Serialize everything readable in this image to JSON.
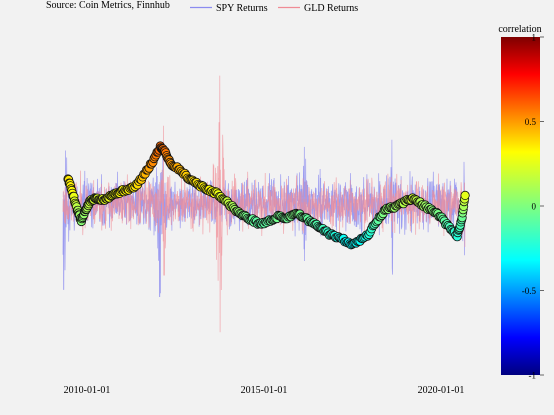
{
  "source_note": "Source: Coin Metrics, Finnhub",
  "chart_data": {
    "type": "line",
    "x_axis": {
      "type": "date",
      "range": [
        "2008-11-15",
        "2020-04-10"
      ],
      "tick_labels": [
        "2010-01-01",
        "2015-01-01",
        "2020-01-01"
      ]
    },
    "y_axis": {
      "range": [
        -0.12,
        0.115
      ],
      "visible": false
    },
    "legend": {
      "placement": "top-center",
      "entries": [
        {
          "name": "SPY Returns",
          "color": "#8c8cf0"
        },
        {
          "name": "GLD Returns",
          "color": "#f08c96"
        }
      ]
    },
    "colorbar": {
      "title": "correlation",
      "range": [
        -1,
        1
      ],
      "tick_labels": [
        "1",
        "0.5",
        "0",
        "-0.5",
        "-1"
      ],
      "tick_values": [
        1,
        0.5,
        0,
        -0.5,
        -1
      ],
      "colorscale": "jet"
    },
    "series": [
      {
        "name": "SPY Returns",
        "color": "#8c8cf0",
        "seed": 11,
        "volatility_spikes": [
          {
            "date": "2008-12-01",
            "amplitude": 0.06
          },
          {
            "date": "2011-08-08",
            "amplitude": 0.065
          },
          {
            "date": "2015-08-24",
            "amplitude": 0.04
          },
          {
            "date": "2018-02-05",
            "amplitude": 0.045
          },
          {
            "date": "2020-03-16",
            "amplitude": 0.11
          }
        ]
      },
      {
        "name": "GLD Returns",
        "color": "#f08c96",
        "seed": 23,
        "volatility_spikes": [
          {
            "date": "2013-04-15",
            "amplitude": 0.09
          },
          {
            "date": "2011-09-23",
            "amplitude": 0.05
          },
          {
            "date": "2020-03-13",
            "amplitude": 0.045
          }
        ]
      },
      {
        "name": "rolling correlation",
        "type": "scatter",
        "marker_outline": "#111111",
        "points": [
          {
            "x": "2009-01-15",
            "y": 0.018,
            "c": 0.3
          },
          {
            "x": "2009-03-01",
            "y": 0.008,
            "c": 0.25
          },
          {
            "x": "2009-04-20",
            "y": -0.004,
            "c": 0.1
          },
          {
            "x": "2009-06-01",
            "y": -0.012,
            "c": 0.02
          },
          {
            "x": "2009-07-15",
            "y": -0.004,
            "c": 0.06
          },
          {
            "x": "2009-09-01",
            "y": 0.002,
            "c": 0.15
          },
          {
            "x": "2009-11-01",
            "y": 0.004,
            "c": 0.18
          },
          {
            "x": "2010-01-15",
            "y": 0.003,
            "c": 0.2
          },
          {
            "x": "2010-04-01",
            "y": 0.006,
            "c": 0.22
          },
          {
            "x": "2010-06-15",
            "y": 0.008,
            "c": 0.25
          },
          {
            "x": "2010-09-01",
            "y": 0.01,
            "c": 0.27
          },
          {
            "x": "2010-12-01",
            "y": 0.012,
            "c": 0.3
          },
          {
            "x": "2011-03-01",
            "y": 0.02,
            "c": 0.38
          },
          {
            "x": "2011-06-01",
            "y": 0.03,
            "c": 0.48
          },
          {
            "x": "2011-08-15",
            "y": 0.04,
            "c": 0.55
          },
          {
            "x": "2011-10-01",
            "y": 0.037,
            "c": 0.53
          },
          {
            "x": "2011-12-01",
            "y": 0.028,
            "c": 0.45
          },
          {
            "x": "2012-03-01",
            "y": 0.024,
            "c": 0.4
          },
          {
            "x": "2012-06-01",
            "y": 0.018,
            "c": 0.33
          },
          {
            "x": "2012-09-01",
            "y": 0.014,
            "c": 0.3
          },
          {
            "x": "2012-12-01",
            "y": 0.01,
            "c": 0.26
          },
          {
            "x": "2013-03-01",
            "y": 0.008,
            "c": 0.24
          },
          {
            "x": "2013-06-01",
            "y": 0.003,
            "c": 0.16
          },
          {
            "x": "2013-09-01",
            "y": -0.003,
            "c": 0.08
          },
          {
            "x": "2013-12-01",
            "y": -0.008,
            "c": 0.0
          },
          {
            "x": "2014-03-01",
            "y": -0.011,
            "c": -0.05
          },
          {
            "x": "2014-06-01",
            "y": -0.014,
            "c": -0.08
          },
          {
            "x": "2014-09-01",
            "y": -0.012,
            "c": -0.06
          },
          {
            "x": "2014-12-01",
            "y": -0.009,
            "c": -0.02
          },
          {
            "x": "2015-03-01",
            "y": -0.01,
            "c": -0.04
          },
          {
            "x": "2015-06-01",
            "y": -0.006,
            "c": 0.0
          },
          {
            "x": "2015-09-01",
            "y": -0.01,
            "c": -0.05
          },
          {
            "x": "2015-12-01",
            "y": -0.014,
            "c": -0.08
          },
          {
            "x": "2016-03-01",
            "y": -0.018,
            "c": -0.12
          },
          {
            "x": "2016-06-01",
            "y": -0.022,
            "c": -0.18
          },
          {
            "x": "2016-09-01",
            "y": -0.024,
            "c": -0.22
          },
          {
            "x": "2016-12-01",
            "y": -0.028,
            "c": -0.26
          },
          {
            "x": "2017-03-01",
            "y": -0.026,
            "c": -0.24
          },
          {
            "x": "2017-06-01",
            "y": -0.022,
            "c": -0.2
          },
          {
            "x": "2017-09-01",
            "y": -0.012,
            "c": -0.08
          },
          {
            "x": "2017-12-01",
            "y": -0.004,
            "c": 0.02
          },
          {
            "x": "2018-03-01",
            "y": -0.002,
            "c": 0.05
          },
          {
            "x": "2018-06-01",
            "y": 0.001,
            "c": 0.1
          },
          {
            "x": "2018-09-01",
            "y": 0.004,
            "c": 0.16
          },
          {
            "x": "2018-12-01",
            "y": 0.0,
            "c": 0.08
          },
          {
            "x": "2019-03-01",
            "y": -0.004,
            "c": 0.03
          },
          {
            "x": "2019-06-01",
            "y": -0.008,
            "c": -0.02
          },
          {
            "x": "2019-09-01",
            "y": -0.016,
            "c": -0.1
          },
          {
            "x": "2019-12-01",
            "y": -0.022,
            "c": -0.18
          },
          {
            "x": "2020-01-15",
            "y": -0.012,
            "c": -0.08
          },
          {
            "x": "2020-02-20",
            "y": 0.006,
            "c": 0.2
          }
        ]
      }
    ]
  }
}
